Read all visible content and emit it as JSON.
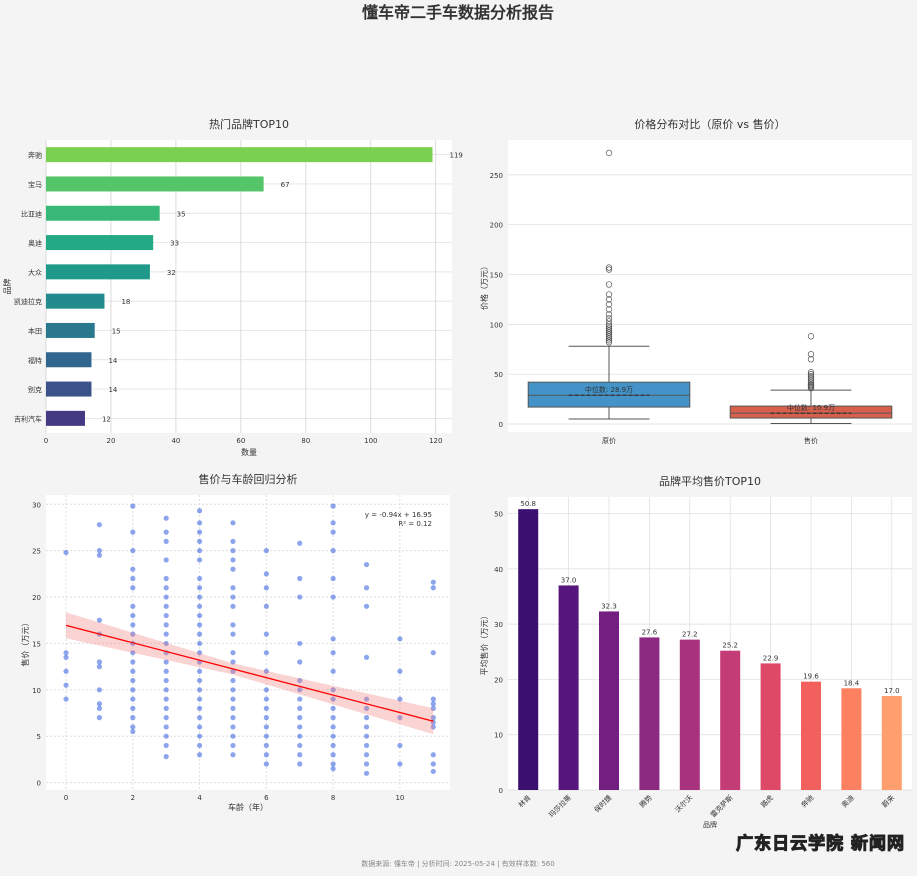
{
  "title": "懂车帝二手车数据分析报告",
  "footer": "数据来源: 懂车帝 | 分析时间: 2025-05-24 | 有效样本数: 560",
  "watermark": "广东日云学院 新闻网",
  "chart_data": [
    {
      "type": "bar",
      "orientation": "horizontal",
      "title": "热门品牌TOP10",
      "xlabel": "数量",
      "ylabel": "品牌",
      "categories": [
        "奔驰",
        "宝马",
        "比亚迪",
        "奥迪",
        "大众",
        "凯迪拉克",
        "本田",
        "福特",
        "别克",
        "吉利汽车"
      ],
      "values": [
        119,
        67,
        35,
        33,
        32,
        18,
        15,
        14,
        14,
        12
      ],
      "colors": [
        "#7ad151",
        "#54c568",
        "#38b977",
        "#23a983",
        "#1f9a8a",
        "#228b8d",
        "#2a788e",
        "#31668e",
        "#3b528b",
        "#443983"
      ],
      "xlim": [
        0,
        125
      ],
      "xticks": [
        0,
        20,
        40,
        60,
        80,
        100,
        120
      ],
      "grid": true
    },
    {
      "type": "box",
      "title": "价格分布对比（原价 vs 售价）",
      "ylabel": "价格（万元）",
      "ylim": [
        -8,
        285
      ],
      "yticks": [
        0,
        50,
        100,
        150,
        200,
        250
      ],
      "series": [
        {
          "name": "原价",
          "color": "#4393c9",
          "whislo": 5,
          "q1": 17,
          "med": 28.9,
          "q3": 42,
          "whishi": 78,
          "median_label": "中位数: 28.9万",
          "fliers": [
            82,
            84,
            86,
            88,
            90,
            92,
            94,
            96,
            98,
            100,
            103,
            106,
            110,
            115,
            120,
            125,
            130,
            140,
            155,
            157,
            272
          ]
        },
        {
          "name": "售价",
          "color": "#d7604d",
          "whislo": 0.5,
          "q1": 6,
          "med": 10.9,
          "q3": 18,
          "whishi": 34,
          "median_label": "中位数: 10.9万",
          "fliers": [
            36,
            37,
            38,
            39,
            40,
            42,
            44,
            46,
            48,
            50,
            52,
            65,
            70,
            88
          ]
        }
      ]
    },
    {
      "type": "scatter",
      "title": "售价与车龄回归分析",
      "xlabel": "车龄（年）",
      "ylabel": "售价（万元）",
      "xlim": [
        -0.6,
        11.5
      ],
      "ylim": [
        -0.8,
        31
      ],
      "xticks": [
        0,
        2,
        4,
        6,
        8,
        10
      ],
      "yticks": [
        0,
        5,
        10,
        15,
        20,
        25,
        30
      ],
      "regression": {
        "slope": -0.94,
        "intercept": 16.95,
        "ci": 1.4,
        "equation": "y = -0.94x + 16.95",
        "r2": "R² = 0.12"
      },
      "points": [
        [
          0,
          24.8
        ],
        [
          0,
          14
        ],
        [
          0,
          13.5
        ],
        [
          0,
          12
        ],
        [
          0,
          10.5
        ],
        [
          0,
          9
        ],
        [
          1,
          27.8
        ],
        [
          1,
          25
        ],
        [
          1,
          24.5
        ],
        [
          1,
          17.5
        ],
        [
          1,
          16
        ],
        [
          1,
          13
        ],
        [
          1,
          12.5
        ],
        [
          1,
          10
        ],
        [
          1,
          8.5
        ],
        [
          1,
          8
        ],
        [
          1,
          7
        ],
        [
          2,
          29.8
        ],
        [
          2,
          27
        ],
        [
          2,
          25
        ],
        [
          2,
          23
        ],
        [
          2,
          22
        ],
        [
          2,
          21
        ],
        [
          2,
          19
        ],
        [
          2,
          18
        ],
        [
          2,
          17
        ],
        [
          2,
          16
        ],
        [
          2,
          15
        ],
        [
          2,
          14
        ],
        [
          2,
          13
        ],
        [
          2,
          12
        ],
        [
          2,
          11
        ],
        [
          2,
          10
        ],
        [
          2,
          9
        ],
        [
          2,
          8
        ],
        [
          2,
          7
        ],
        [
          2,
          6
        ],
        [
          2,
          5.5
        ],
        [
          3,
          28.5
        ],
        [
          3,
          27
        ],
        [
          3,
          26
        ],
        [
          3,
          24
        ],
        [
          3,
          22
        ],
        [
          3,
          21
        ],
        [
          3,
          20
        ],
        [
          3,
          19
        ],
        [
          3,
          18
        ],
        [
          3,
          17
        ],
        [
          3,
          16
        ],
        [
          3,
          15
        ],
        [
          3,
          14
        ],
        [
          3,
          13
        ],
        [
          3,
          12
        ],
        [
          3,
          11
        ],
        [
          3,
          10
        ],
        [
          3,
          9
        ],
        [
          3,
          8
        ],
        [
          3,
          7
        ],
        [
          3,
          6
        ],
        [
          3,
          5
        ],
        [
          3,
          4
        ],
        [
          3,
          2.8
        ],
        [
          4,
          29.3
        ],
        [
          4,
          28
        ],
        [
          4,
          27
        ],
        [
          4,
          26
        ],
        [
          4,
          25
        ],
        [
          4,
          24
        ],
        [
          4,
          22
        ],
        [
          4,
          21
        ],
        [
          4,
          20
        ],
        [
          4,
          19
        ],
        [
          4,
          18
        ],
        [
          4,
          17
        ],
        [
          4,
          16
        ],
        [
          4,
          15
        ],
        [
          4,
          14
        ],
        [
          4,
          13
        ],
        [
          4,
          12
        ],
        [
          4,
          11
        ],
        [
          4,
          10
        ],
        [
          4,
          9
        ],
        [
          4,
          8
        ],
        [
          4,
          7
        ],
        [
          4,
          6
        ],
        [
          4,
          5
        ],
        [
          4,
          4
        ],
        [
          4,
          3
        ],
        [
          5,
          28
        ],
        [
          5,
          26
        ],
        [
          5,
          25
        ],
        [
          5,
          24
        ],
        [
          5,
          23
        ],
        [
          5,
          21
        ],
        [
          5,
          20
        ],
        [
          5,
          19
        ],
        [
          5,
          17
        ],
        [
          5,
          16
        ],
        [
          5,
          14
        ],
        [
          5,
          13
        ],
        [
          5,
          12
        ],
        [
          5,
          11
        ],
        [
          5,
          10
        ],
        [
          5,
          9
        ],
        [
          5,
          8
        ],
        [
          5,
          7
        ],
        [
          5,
          6
        ],
        [
          5,
          5
        ],
        [
          5,
          4
        ],
        [
          5,
          3
        ],
        [
          6,
          25
        ],
        [
          6,
          22.5
        ],
        [
          6,
          21
        ],
        [
          6,
          19
        ],
        [
          6,
          16
        ],
        [
          6,
          14
        ],
        [
          6,
          12
        ],
        [
          6,
          10
        ],
        [
          6,
          9
        ],
        [
          6,
          8
        ],
        [
          6,
          7
        ],
        [
          6,
          6
        ],
        [
          6,
          5
        ],
        [
          6,
          4
        ],
        [
          6,
          3
        ],
        [
          6,
          2
        ],
        [
          7,
          25.8
        ],
        [
          7,
          22
        ],
        [
          7,
          20
        ],
        [
          7,
          15
        ],
        [
          7,
          13
        ],
        [
          7,
          11
        ],
        [
          7,
          10
        ],
        [
          7,
          9
        ],
        [
          7,
          8
        ],
        [
          7,
          7
        ],
        [
          7,
          6
        ],
        [
          7,
          5
        ],
        [
          7,
          4
        ],
        [
          7,
          3
        ],
        [
          7,
          2
        ],
        [
          8,
          29.8
        ],
        [
          8,
          28
        ],
        [
          8,
          27
        ],
        [
          8,
          25
        ],
        [
          8,
          22
        ],
        [
          8,
          20
        ],
        [
          8,
          15.5
        ],
        [
          8,
          14
        ],
        [
          8,
          12
        ],
        [
          8,
          10
        ],
        [
          8,
          9
        ],
        [
          8,
          8
        ],
        [
          8,
          7
        ],
        [
          8,
          6
        ],
        [
          8,
          5
        ],
        [
          8,
          4
        ],
        [
          8,
          3
        ],
        [
          8,
          2
        ],
        [
          8,
          1.5
        ],
        [
          9,
          23.5
        ],
        [
          9,
          21
        ],
        [
          9,
          19
        ],
        [
          9,
          13.5
        ],
        [
          9,
          9
        ],
        [
          9,
          8
        ],
        [
          9,
          7
        ],
        [
          9,
          6
        ],
        [
          9,
          5
        ],
        [
          9,
          4
        ],
        [
          9,
          3
        ],
        [
          9,
          2
        ],
        [
          9,
          1
        ],
        [
          10,
          15.5
        ],
        [
          10,
          12
        ],
        [
          10,
          9
        ],
        [
          10,
          7
        ],
        [
          10,
          4
        ],
        [
          10,
          2
        ],
        [
          11,
          21.6
        ],
        [
          11,
          21
        ],
        [
          11,
          14
        ],
        [
          11,
          9
        ],
        [
          11,
          8.5
        ],
        [
          11,
          8
        ],
        [
          11,
          7
        ],
        [
          11,
          6.5
        ],
        [
          11,
          6
        ],
        [
          11,
          3
        ],
        [
          11,
          2
        ],
        [
          11,
          1.2
        ]
      ]
    },
    {
      "type": "bar",
      "title": "品牌平均售价TOP10",
      "xlabel": "品牌",
      "ylabel": "平均售价（万元）",
      "categories": [
        "林肯",
        "玛莎拉蒂",
        "保时捷",
        "腾势",
        "沃尔沃",
        "雷克萨斯",
        "路虎",
        "奔驰",
        "奥迪",
        "蔚来"
      ],
      "values": [
        50.8,
        37.0,
        32.3,
        27.6,
        27.2,
        25.2,
        22.9,
        19.6,
        18.4,
        17.0
      ],
      "labels": [
        "50.8",
        "37.0",
        "32.3",
        "27.6",
        "27.2",
        "25.2",
        "22.9",
        "19.6",
        "18.4",
        "17.0"
      ],
      "colors": [
        "#3b0f70",
        "#57157e",
        "#721f81",
        "#8c2981",
        "#a8327d",
        "#c43c75",
        "#de4968",
        "#f1605d",
        "#fd8060",
        "#fe9f6d"
      ],
      "ylim": [
        0,
        53
      ],
      "yticks": [
        0,
        10,
        20,
        30,
        40,
        50
      ],
      "grid": true
    }
  ]
}
